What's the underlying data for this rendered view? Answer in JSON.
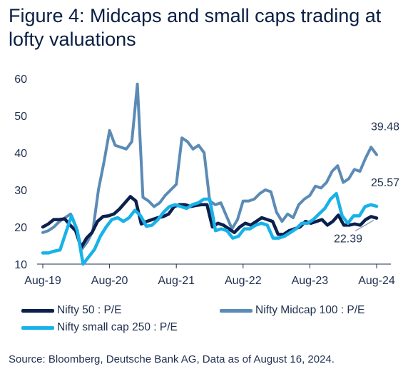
{
  "title": "Figure 4: Midcaps and small caps trading at lofty valuations",
  "source": "Source: Bloomberg, Deutsche Bank AG, Data as of August 16, 2024.",
  "chart_data": {
    "type": "line",
    "x_start": "2019-08",
    "x_end": "2024-08",
    "x_tick_labels": [
      "Aug-19",
      "Aug-20",
      "Aug-21",
      "Aug-22",
      "Aug-23",
      "Aug-24"
    ],
    "ylim": [
      10,
      60
    ],
    "y_ticks": [
      10,
      20,
      30,
      40,
      50,
      60
    ],
    "grid": false,
    "legend_position": "bottom",
    "series": [
      {
        "name": "Nifty 50 : P/E",
        "color": "#0c1f4d",
        "values": [
          20.0,
          20.8,
          22.0,
          22.0,
          22.2,
          20.5,
          19.0,
          14.5,
          17.0,
          18.5,
          21.5,
          22.8,
          23.0,
          23.5,
          24.8,
          26.5,
          28.2,
          27.0,
          20.8,
          21.5,
          22.0,
          22.5,
          22.8,
          23.5,
          25.5,
          26.0,
          26.0,
          25.5,
          25.8,
          26.0,
          26.0,
          20.0,
          21.0,
          20.5,
          19.5,
          18.5,
          20.0,
          21.0,
          20.5,
          21.5,
          22.5,
          22.0,
          21.5,
          18.0,
          18.0,
          19.0,
          19.5,
          20.0,
          21.5,
          21.0,
          21.5,
          22.0,
          20.5,
          21.5,
          23.2,
          20.5,
          20.5,
          20.8,
          20.5,
          22.0,
          22.8,
          22.39
        ]
      },
      {
        "name": "Nifty Midcap 100 : P/E",
        "color": "#5b8bb5",
        "values": [
          18.5,
          19.0,
          20.0,
          21.5,
          22.5,
          23.5,
          20.0,
          14.0,
          16.0,
          19.0,
          30.0,
          37.5,
          46.0,
          42.0,
          41.5,
          41.0,
          43.0,
          58.5,
          28.0,
          27.0,
          25.5,
          26.5,
          28.5,
          30.0,
          31.5,
          44.0,
          43.0,
          41.0,
          42.0,
          40.0,
          27.0,
          26.0,
          26.5,
          23.0,
          19.5,
          22.0,
          27.0,
          27.0,
          27.5,
          29.0,
          30.0,
          29.5,
          24.0,
          21.5,
          23.5,
          22.5,
          26.0,
          27.5,
          28.5,
          31.0,
          30.5,
          32.0,
          35.0,
          36.5,
          32.0,
          33.0,
          35.5,
          35.0,
          38.5,
          41.5,
          39.48
        ]
      },
      {
        "name": "Nifty small cap 250 : P/E",
        "color": "#19b2e8",
        "values": [
          13.0,
          13.0,
          13.5,
          13.8,
          18.5,
          23.0,
          19.0,
          10.0,
          12.0,
          14.0,
          17.5,
          20.0,
          22.0,
          22.5,
          21.5,
          22.5,
          24.5,
          23.0,
          20.2,
          20.5,
          22.0,
          24.0,
          25.5,
          26.0,
          25.5,
          25.0,
          26.0,
          26.5,
          27.5,
          27.5,
          19.0,
          19.5,
          19.0,
          17.0,
          17.5,
          19.5,
          19.5,
          20.5,
          21.0,
          20.5,
          17.0,
          17.0,
          17.5,
          18.5,
          19.5,
          21.0,
          21.0,
          22.0,
          23.5,
          25.0,
          27.5,
          29.0,
          23.0,
          21.0,
          23.0,
          23.0,
          25.5,
          26.0,
          25.57
        ]
      }
    ],
    "annotations": [
      {
        "series": 1,
        "text": "39.48"
      },
      {
        "series": 2,
        "text": "25.57"
      },
      {
        "series": 0,
        "text": "22.39"
      }
    ]
  }
}
